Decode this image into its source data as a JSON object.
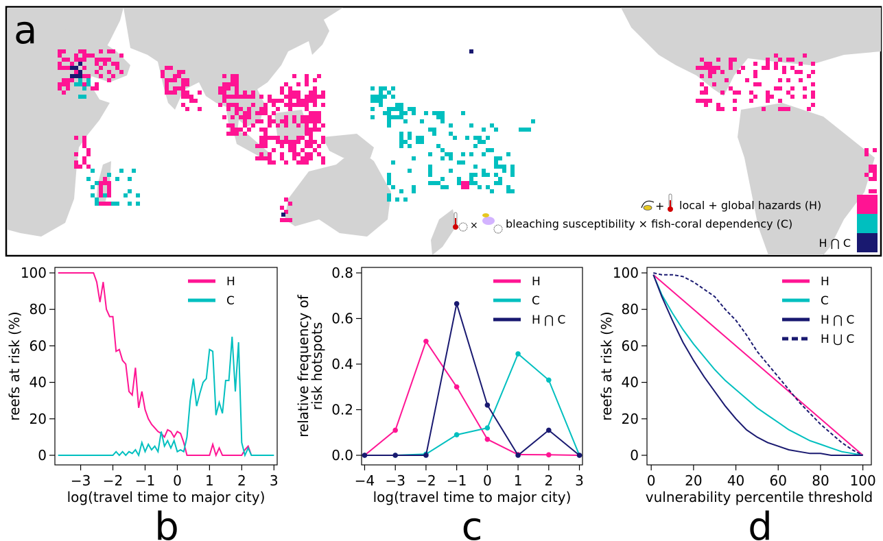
{
  "colors": {
    "H": "#ff1493",
    "C": "#00bfbf",
    "HC": "#191970",
    "land": "#d3d3d3"
  },
  "panel_a": {
    "letter": "a",
    "legend": [
      {
        "label": "local + global hazards (H)",
        "color": "#ff1493",
        "icon": "fishing-thermometer-icon"
      },
      {
        "label": "bleaching susceptibility × fish-coral dependency (C)",
        "color": "#00bfbf",
        "icon": "thermometer-coral-fish-icon"
      },
      {
        "label": "H ⋂ C",
        "color": "#191970",
        "icon": ""
      }
    ]
  },
  "panel_letters": {
    "b": "b",
    "c": "c",
    "d": "d"
  },
  "chart_data": [
    {
      "type": "line",
      "panel": "b",
      "xlabel": "log(travel time to major city)",
      "ylabel": "reefs at risk (%)",
      "xlim": [
        -3.8,
        3.1
      ],
      "ylim": [
        0,
        100
      ],
      "xticks": [
        -3,
        -2,
        -1,
        0,
        1,
        2,
        3
      ],
      "yticks": [
        0,
        20,
        40,
        60,
        80,
        100
      ],
      "legend_position": "top-right",
      "series": [
        {
          "name": "H",
          "color": "#ff1493",
          "x": [
            -3.7,
            -3.0,
            -2.6,
            -2.5,
            -2.4,
            -2.3,
            -2.2,
            -2.1,
            -2.0,
            -1.9,
            -1.8,
            -1.7,
            -1.6,
            -1.5,
            -1.4,
            -1.3,
            -1.2,
            -1.1,
            -1.0,
            -0.9,
            -0.8,
            -0.7,
            -0.6,
            -0.5,
            -0.4,
            -0.3,
            -0.2,
            -0.1,
            0.0,
            0.1,
            0.2,
            0.3,
            0.5,
            1.0,
            1.1,
            1.2,
            1.3,
            1.4,
            1.5,
            1.8,
            1.9,
            2.0,
            2.1,
            2.2,
            2.3
          ],
          "y": [
            100,
            100,
            100,
            95,
            84,
            95,
            80,
            76,
            76,
            57,
            58,
            52,
            50,
            35,
            33,
            48,
            26,
            35,
            25,
            20,
            17,
            15,
            13,
            12,
            10,
            14,
            13,
            10,
            13,
            12,
            7,
            0,
            0,
            0,
            6,
            0,
            4,
            0,
            0,
            0,
            0,
            0,
            3,
            5,
            0
          ]
        },
        {
          "name": "C",
          "color": "#00bfbf",
          "x": [
            -3.7,
            -2.0,
            -1.9,
            -1.8,
            -1.7,
            -1.6,
            -1.5,
            -1.4,
            -1.3,
            -1.2,
            -1.1,
            -1.0,
            -0.9,
            -0.8,
            -0.7,
            -0.6,
            -0.5,
            -0.4,
            -0.3,
            -0.2,
            -0.1,
            0.0,
            0.1,
            0.2,
            0.3,
            0.4,
            0.5,
            0.6,
            0.7,
            0.8,
            0.9,
            1.0,
            1.1,
            1.2,
            1.3,
            1.4,
            1.5,
            1.6,
            1.7,
            1.8,
            1.9,
            2.0,
            2.1,
            2.2,
            2.3,
            3.0
          ],
          "y": [
            0,
            0,
            2,
            0,
            2,
            0,
            2,
            1,
            3,
            0,
            7,
            2,
            6,
            3,
            5,
            2,
            13,
            5,
            8,
            4,
            8,
            2,
            3,
            2,
            10,
            30,
            42,
            27,
            34,
            40,
            42,
            58,
            57,
            22,
            29,
            23,
            41,
            41,
            65,
            35,
            62,
            7,
            0,
            4,
            0,
            0
          ]
        }
      ]
    },
    {
      "type": "line",
      "panel": "c",
      "xlabel": "log(travel time to major city)",
      "ylabel": "relative frequency of risk hotspots",
      "ylabel_lines": [
        "relative frequency of",
        "risk hotspots"
      ],
      "xlim": [
        -4.1,
        3.1
      ],
      "ylim": [
        0,
        0.8
      ],
      "xticks": [
        -4,
        -3,
        -2,
        -1,
        0,
        1,
        2,
        3
      ],
      "ytick_labels": [
        "0.0",
        "0.2",
        "0.4",
        "0.6",
        "0.8"
      ],
      "legend_position": "top-right",
      "series": [
        {
          "name": "H",
          "color": "#ff1493",
          "x": [
            -4,
            -3,
            -2,
            -1,
            0,
            1,
            2,
            3
          ],
          "y": [
            0.0,
            0.11,
            0.5,
            0.3,
            0.07,
            0.003,
            0.002,
            0.0
          ]
        },
        {
          "name": "C",
          "color": "#00bfbf",
          "x": [
            -4,
            -3,
            -2,
            -1,
            0,
            1,
            2,
            3
          ],
          "y": [
            0.0,
            0.0,
            0.005,
            0.09,
            0.12,
            0.445,
            0.33,
            0.0
          ]
        },
        {
          "name": "H ⋂ C",
          "color": "#191970",
          "x": [
            -4,
            -3,
            -2,
            -1,
            0,
            1,
            2,
            3
          ],
          "y": [
            0.0,
            0.0,
            0.0,
            0.665,
            0.22,
            0.0,
            0.11,
            0.0
          ]
        }
      ]
    },
    {
      "type": "line",
      "panel": "d",
      "xlabel": "vulnerability percentile threshold",
      "ylabel": "reefs at risk (%)",
      "xlim": [
        -2,
        104
      ],
      "ylim": [
        0,
        100
      ],
      "xticks": [
        0,
        20,
        40,
        60,
        80,
        100
      ],
      "yticks": [
        0,
        20,
        40,
        60,
        80,
        100
      ],
      "legend_position": "top-right",
      "series": [
        {
          "name": "H",
          "color": "#ff1493",
          "dash": false,
          "x": [
            1,
            100
          ],
          "y": [
            99,
            0
          ]
        },
        {
          "name": "C",
          "color": "#00bfbf",
          "dash": false,
          "x": [
            1,
            5,
            10,
            15,
            20,
            25,
            30,
            35,
            40,
            45,
            50,
            55,
            60,
            65,
            70,
            75,
            80,
            85,
            90,
            95,
            100
          ],
          "y": [
            99,
            88,
            78,
            69,
            61,
            54,
            47,
            41,
            36,
            31,
            26,
            22,
            18,
            14,
            11,
            8,
            6,
            4,
            2,
            1,
            0
          ]
        },
        {
          "name": "H ⋂ C",
          "color": "#191970",
          "dash": false,
          "x": [
            1,
            5,
            10,
            15,
            20,
            25,
            30,
            35,
            40,
            45,
            50,
            55,
            60,
            65,
            70,
            75,
            80,
            85,
            90,
            95,
            100
          ],
          "y": [
            99,
            87,
            74,
            62,
            52,
            43,
            35,
            27,
            20,
            14,
            10,
            7,
            5,
            3,
            2,
            1,
            1,
            0,
            0,
            0,
            0
          ]
        },
        {
          "name": "H ⋃ C",
          "color": "#191970",
          "dash": true,
          "x": [
            1,
            5,
            10,
            15,
            20,
            25,
            30,
            35,
            40,
            45,
            50,
            55,
            60,
            65,
            70,
            75,
            80,
            85,
            90,
            95,
            100
          ],
          "y": [
            100,
            99,
            99,
            98,
            95,
            91,
            87,
            80,
            74,
            66,
            57,
            50,
            43,
            36,
            29,
            23,
            17,
            12,
            7,
            3,
            0
          ]
        }
      ]
    }
  ]
}
